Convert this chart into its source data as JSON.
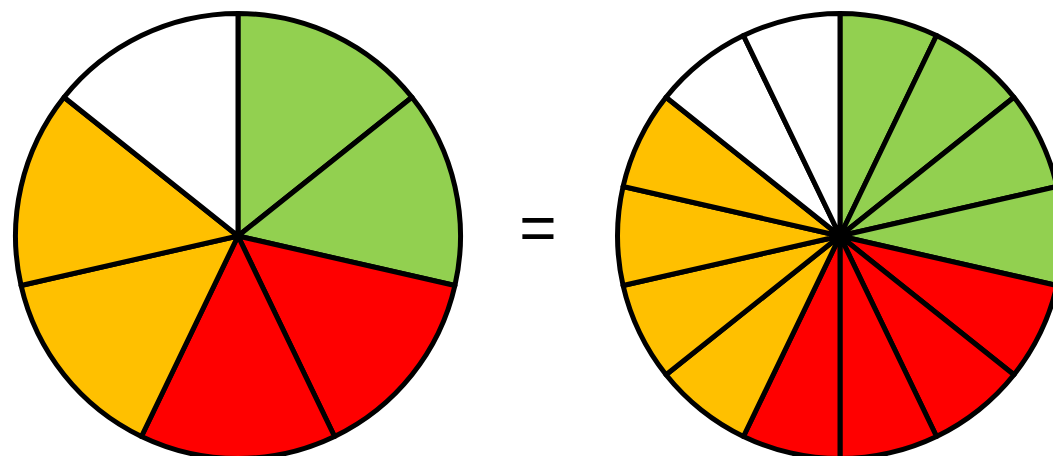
{
  "chart_data": [
    {
      "type": "pie",
      "categories": [
        null,
        null,
        null,
        null,
        null,
        null,
        null
      ],
      "values": [
        14.29,
        14.29,
        14.29,
        14.29,
        14.29,
        14.29,
        14.29
      ],
      "colors": [
        "#92d050",
        "#92d050",
        "#ff0000",
        "#ff0000",
        "#ffc000",
        "#ffc000",
        "#ffffff"
      ],
      "legend": false,
      "annotations": [
        "="
      ]
    },
    {
      "type": "pie",
      "categories": [
        null,
        null,
        null,
        null,
        null,
        null,
        null,
        null,
        null,
        null,
        null,
        null,
        null,
        null
      ],
      "values": [
        7.14,
        7.14,
        7.14,
        7.14,
        7.14,
        7.14,
        7.14,
        7.14,
        7.14,
        7.14,
        7.14,
        7.14,
        7.14,
        7.14
      ],
      "colors": [
        "#92d050",
        "#92d050",
        "#92d050",
        "#92d050",
        "#ff0000",
        "#ff0000",
        "#ff0000",
        "#ff0000",
        "#ffc000",
        "#ffc000",
        "#ffc000",
        "#ffc000",
        "#ffffff",
        "#ffffff"
      ],
      "legend": false
    }
  ]
}
